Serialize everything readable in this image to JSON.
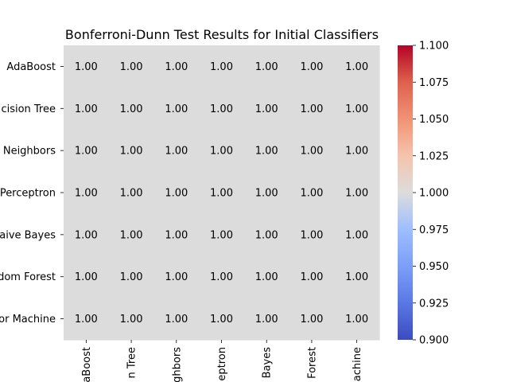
{
  "chart_data": {
    "type": "heatmap",
    "title": "Bonferroni-Dunn Test Results for Initial Classifiers",
    "row_labels": [
      "AdaBoost",
      "cision Tree",
      "Neighbors",
      "Perceptron",
      "aive Bayes",
      "dom Forest",
      "or Machine"
    ],
    "col_labels": [
      "aBoost",
      "n Tree",
      "ghbors",
      "eptron",
      "Bayes",
      "Forest",
      "achine"
    ],
    "values": [
      [
        1.0,
        1.0,
        1.0,
        1.0,
        1.0,
        1.0,
        1.0
      ],
      [
        1.0,
        1.0,
        1.0,
        1.0,
        1.0,
        1.0,
        1.0
      ],
      [
        1.0,
        1.0,
        1.0,
        1.0,
        1.0,
        1.0,
        1.0
      ],
      [
        1.0,
        1.0,
        1.0,
        1.0,
        1.0,
        1.0,
        1.0
      ],
      [
        1.0,
        1.0,
        1.0,
        1.0,
        1.0,
        1.0,
        1.0
      ],
      [
        1.0,
        1.0,
        1.0,
        1.0,
        1.0,
        1.0,
        1.0
      ],
      [
        1.0,
        1.0,
        1.0,
        1.0,
        1.0,
        1.0,
        1.0
      ]
    ],
    "cell_labels": [
      [
        "1.00",
        "1.00",
        "1.00",
        "1.00",
        "1.00",
        "1.00",
        "1.00"
      ],
      [
        "1.00",
        "1.00",
        "1.00",
        "1.00",
        "1.00",
        "1.00",
        "1.00"
      ],
      [
        "1.00",
        "1.00",
        "1.00",
        "1.00",
        "1.00",
        "1.00",
        "1.00"
      ],
      [
        "1.00",
        "1.00",
        "1.00",
        "1.00",
        "1.00",
        "1.00",
        "1.00"
      ],
      [
        "1.00",
        "1.00",
        "1.00",
        "1.00",
        "1.00",
        "1.00",
        "1.00"
      ],
      [
        "1.00",
        "1.00",
        "1.00",
        "1.00",
        "1.00",
        "1.00",
        "1.00"
      ],
      [
        "1.00",
        "1.00",
        "1.00",
        "1.00",
        "1.00",
        "1.00",
        "1.00"
      ]
    ],
    "colorbar": {
      "colormap": "coolwarm",
      "vmin": 0.9,
      "vmax": 1.1,
      "ticks": [
        0.9,
        0.925,
        0.95,
        0.975,
        1.0,
        1.025,
        1.05,
        1.075,
        1.1
      ],
      "tick_labels": [
        "0.900",
        "0.925",
        "0.950",
        "0.975",
        "1.000",
        "1.025",
        "1.050",
        "1.075",
        "1.100"
      ]
    },
    "colors": {
      "cell": "#dddcdc",
      "cmap_low": "#3b4cc0",
      "cmap_mid": "#dddcdc",
      "cmap_high": "#b40426"
    }
  }
}
